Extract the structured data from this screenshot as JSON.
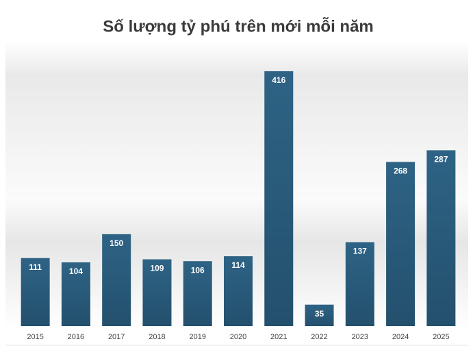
{
  "chart_data": {
    "type": "bar",
    "title": "Số lượng tỷ phú trên mới mỗi năm",
    "categories": [
      "2015",
      "2016",
      "2017",
      "2018",
      "2019",
      "2020",
      "2021",
      "2022",
      "2023",
      "2024",
      "2025"
    ],
    "values": [
      111,
      104,
      150,
      109,
      106,
      114,
      416,
      35,
      137,
      268,
      287
    ],
    "color": "#2b5f80"
  }
}
